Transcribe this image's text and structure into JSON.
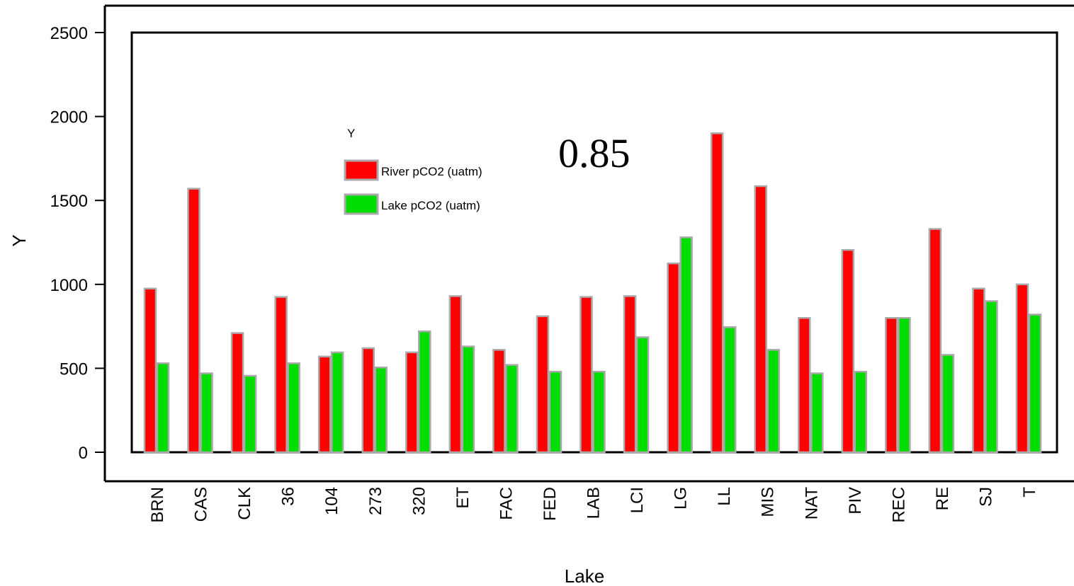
{
  "chart_data": {
    "type": "bar",
    "xlabel": "Lake",
    "ylabel": "Y",
    "ylim": [
      0,
      2500
    ],
    "yticks": [
      0,
      500,
      1000,
      1500,
      2000,
      2500
    ],
    "categories": [
      "BRN",
      "CAS",
      "CLK",
      "36",
      "104",
      "273",
      "320",
      "ET",
      "FAC",
      "FED",
      "LAB",
      "LCI",
      "LG",
      "LL",
      "MIS",
      "NAT",
      "PIV",
      "REC",
      "RE",
      "SJ",
      "T"
    ],
    "series": [
      {
        "name": "River pCO2 (uatm)",
        "color": "#ff0000",
        "values": [
          975,
          1570,
          710,
          925,
          570,
          620,
          595,
          930,
          610,
          810,
          925,
          930,
          1125,
          1900,
          1585,
          800,
          1205,
          800,
          1330,
          975,
          1000
        ]
      },
      {
        "name": "Lake pCO2 (uatm)",
        "color": "#00dd00",
        "values": [
          530,
          470,
          455,
          530,
          595,
          505,
          720,
          630,
          520,
          480,
          480,
          685,
          1280,
          745,
          610,
          470,
          480,
          800,
          580,
          900,
          820
        ]
      }
    ],
    "legend": {
      "title": "Y",
      "placement": "upper-left"
    },
    "annotation": "0.85",
    "grid": false
  }
}
